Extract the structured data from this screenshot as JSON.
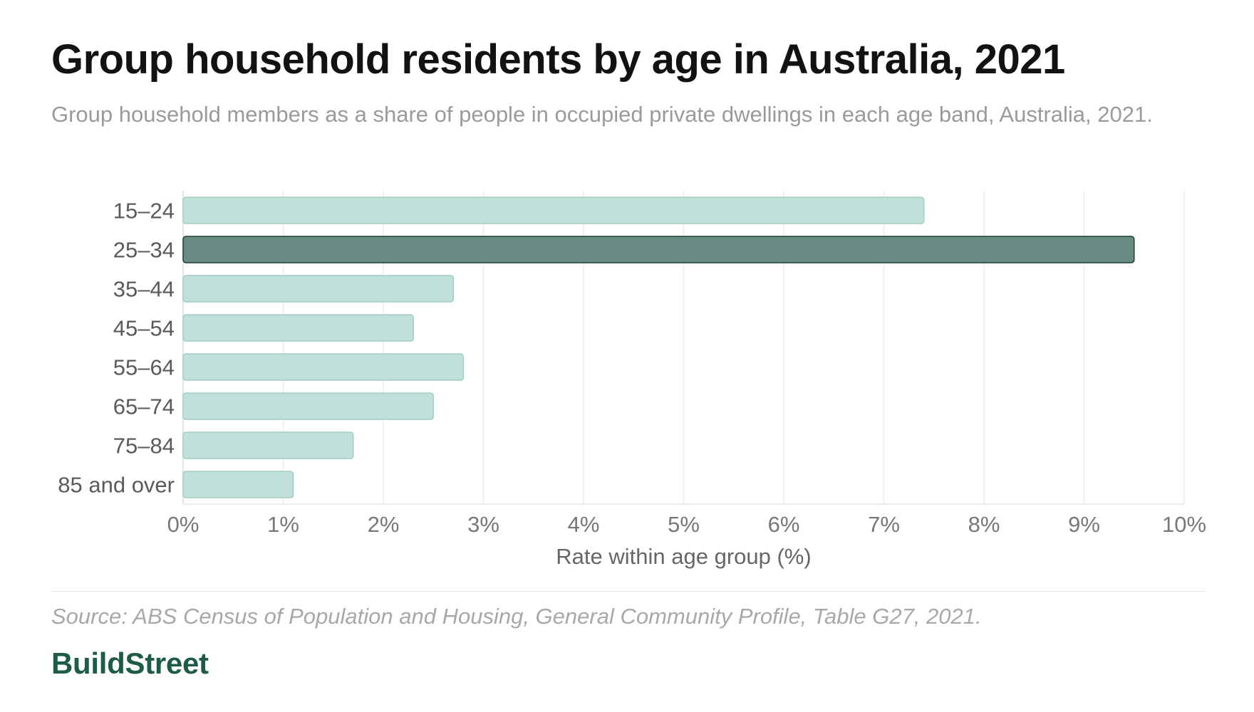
{
  "title": "Group household residents by age in Australia, 2021",
  "subtitle": "Group household members as a share of people in occupied private dwellings in each age band, Australia, 2021.",
  "source": "Source: ABS Census of Population and Housing, General Community Profile, Table G27, 2021.",
  "brand": "BuildStreet",
  "colors": {
    "bar": "#c2e0da",
    "bar_stroke": "#9fcdc3",
    "highlight": "#688c83",
    "highlight_stroke": "#1e3d35",
    "grid": "#ececec",
    "tick_text": "#777777",
    "axis_label": "#666666",
    "category_text": "#5a5a5a"
  },
  "chart_data": {
    "type": "bar",
    "orientation": "horizontal",
    "categories": [
      "15–24",
      "25–34",
      "35–44",
      "45–54",
      "55–64",
      "65–74",
      "75–84",
      "85 and over"
    ],
    "values": [
      7.4,
      9.5,
      2.7,
      2.3,
      2.8,
      2.5,
      1.7,
      1.1
    ],
    "highlight": "25–34",
    "xlabel": "Rate within age group (%)",
    "xlim": [
      0,
      10
    ],
    "xticks": [
      "0%",
      "1%",
      "2%",
      "3%",
      "4%",
      "5%",
      "6%",
      "7%",
      "8%",
      "9%",
      "10%"
    ],
    "grid": true
  }
}
